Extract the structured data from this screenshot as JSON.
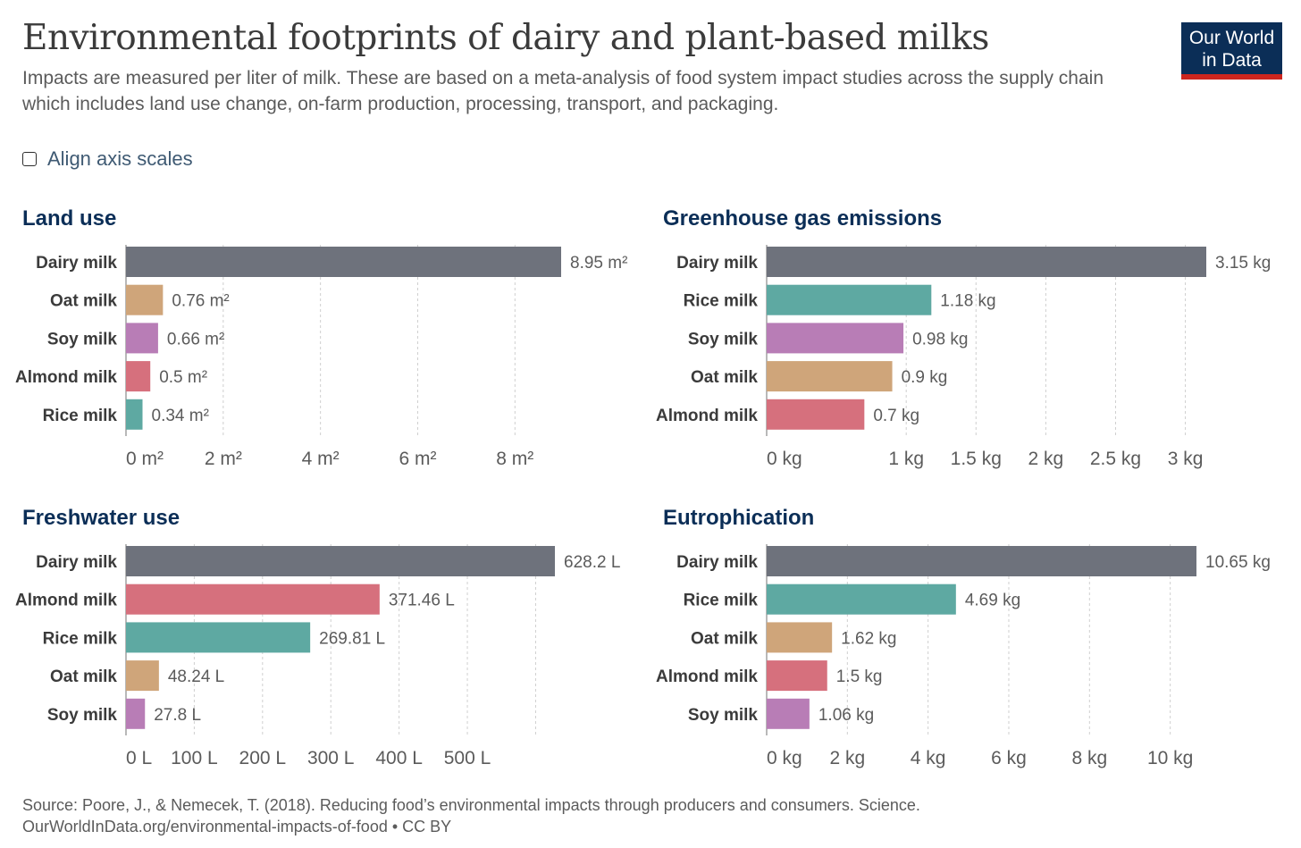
{
  "title": "Environmental footprints of dairy and plant-based milks",
  "subtitle": "Impacts are measured per liter of milk. These are based on a meta-analysis of food system impact studies across the supply chain which includes land use change, on-farm production, processing, transport, and packaging.",
  "logo": {
    "line1": "Our World",
    "line2": "in Data",
    "bg": "#0b2e57",
    "accent": "#ce261e"
  },
  "align_axis": {
    "label": "Align axis scales",
    "checked": false
  },
  "footer": {
    "source": "Source: Poore, J., & Nemecek, T. (2018). Reducing food’s environmental impacts through producers and consumers. Science.",
    "url": "OurWorldInData.org/environmental-impacts-of-food • CC BY"
  },
  "colors": {
    "Dairy milk": "#6e727c",
    "Oat milk": "#cfa57a",
    "Soy milk": "#b87db6",
    "Almond milk": "#d6707d",
    "Rice milk": "#5ea9a2"
  },
  "chart_data": [
    {
      "type": "bar",
      "title": "Land use",
      "categories": [
        "Dairy milk",
        "Oat milk",
        "Soy milk",
        "Almond milk",
        "Rice milk"
      ],
      "values": [
        8.95,
        0.76,
        0.66,
        0.5,
        0.34
      ],
      "value_labels": [
        "8.95 m²",
        "0.76 m²",
        "0.66 m²",
        "0.5 m²",
        "0.34 m²"
      ],
      "xlim": [
        0,
        8.95
      ],
      "ticks": [
        0,
        2,
        4,
        6,
        8
      ],
      "tick_labels": [
        "0 m²",
        "2 m²",
        "4 m²",
        "6 m²",
        "8 m²"
      ]
    },
    {
      "type": "bar",
      "title": "Greenhouse gas emissions",
      "categories": [
        "Dairy milk",
        "Rice milk",
        "Soy milk",
        "Oat milk",
        "Almond milk"
      ],
      "values": [
        3.15,
        1.18,
        0.98,
        0.9,
        0.7
      ],
      "value_labels": [
        "3.15 kg",
        "1.18 kg",
        "0.98 kg",
        "0.9 kg",
        "0.7 kg"
      ],
      "xlim": [
        0,
        3.15
      ],
      "ticks": [
        0,
        1,
        1.5,
        2,
        2.5,
        3
      ],
      "tick_labels": [
        "0 kg",
        "1 kg",
        "1.5 kg",
        "2 kg",
        "2.5 kg",
        "3 kg"
      ]
    },
    {
      "type": "bar",
      "title": "Freshwater use",
      "categories": [
        "Dairy milk",
        "Almond milk",
        "Rice milk",
        "Oat milk",
        "Soy milk"
      ],
      "values": [
        628.2,
        371.46,
        269.81,
        48.24,
        27.8
      ],
      "value_labels": [
        "628.2 L",
        "371.46 L",
        "269.81 L",
        "48.24 L",
        "27.8 L"
      ],
      "xlim": [
        0,
        628.2
      ],
      "ticks": [
        0,
        100,
        200,
        300,
        400,
        500,
        600
      ],
      "tick_labels": [
        "0 L",
        "100 L",
        "200 L",
        "300 L",
        "400 L",
        "500 L",
        ""
      ]
    },
    {
      "type": "bar",
      "title": "Eutrophication",
      "categories": [
        "Dairy milk",
        "Rice milk",
        "Oat milk",
        "Almond milk",
        "Soy milk"
      ],
      "values": [
        10.65,
        4.69,
        1.62,
        1.5,
        1.06
      ],
      "value_labels": [
        "10.65 kg",
        "4.69 kg",
        "1.62 kg",
        "1.5 kg",
        "1.06 kg"
      ],
      "xlim": [
        0,
        10.65
      ],
      "ticks": [
        0,
        2,
        4,
        6,
        8,
        10
      ],
      "tick_labels": [
        "0 kg",
        "2 kg",
        "4 kg",
        "6 kg",
        "8 kg",
        "10 kg"
      ]
    }
  ]
}
